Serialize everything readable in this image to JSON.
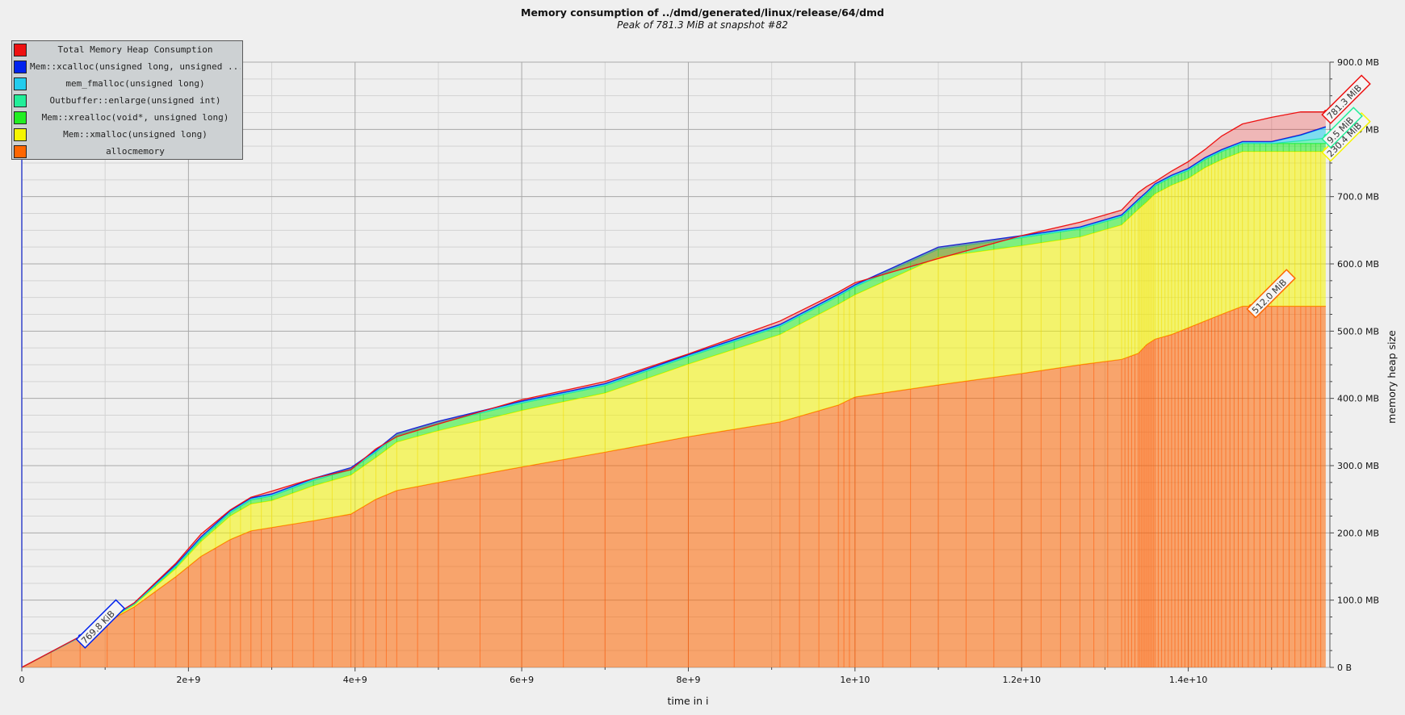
{
  "chart_data": {
    "type": "area",
    "title": "Memory consumption of ../dmd/generated/linux/release/64/dmd",
    "subtitle": "Peak of 781.3 MiB at snapshot #82",
    "xlabel": "time in i",
    "ylabel": "memory heap size",
    "xlim": [
      0,
      15700000000
    ],
    "ylim": [
      0,
      900
    ],
    "x_ticks": [
      {
        "value": 0,
        "label": "0"
      },
      {
        "value": 2000000000,
        "label": "2e+9"
      },
      {
        "value": 4000000000,
        "label": "4e+9"
      },
      {
        "value": 6000000000,
        "label": "6e+9"
      },
      {
        "value": 8000000000,
        "label": "8e+9"
      },
      {
        "value": 10000000000,
        "label": "1e+10"
      },
      {
        "value": 12000000000,
        "label": "1.2e+10"
      },
      {
        "value": 14000000000,
        "label": "1.4e+10"
      }
    ],
    "y_ticks": [
      {
        "value": 0,
        "label": "0 B"
      },
      {
        "value": 100,
        "label": "100.0 MB"
      },
      {
        "value": 200,
        "label": "200.0 MB"
      },
      {
        "value": 300,
        "label": "300.0 MB"
      },
      {
        "value": 400,
        "label": "400.0 MB"
      },
      {
        "value": 500,
        "label": "500.0 MB"
      },
      {
        "value": 600,
        "label": "600.0 MB"
      },
      {
        "value": 700,
        "label": "700.0 MB"
      },
      {
        "value": 800,
        "label": "800.0 MB"
      },
      {
        "value": 900,
        "label": "900.0 MB"
      }
    ],
    "grid": true,
    "stacked": true,
    "legend_position": "top-left",
    "x": [
      0,
      700000000,
      1350000000,
      1850000000,
      2150000000,
      2500000000,
      2750000000,
      3000000000,
      3500000000,
      3950000000,
      4250000000,
      4500000000,
      5000000000,
      6000000000,
      7000000000,
      8000000000,
      9100000000,
      9800000000,
      10000000000,
      11000000000,
      12000000000,
      12700000000,
      13200000000,
      13400000000,
      13500000000,
      13600000000,
      13800000000,
      14000000000,
      14200000000,
      14400000000,
      14650000000,
      15000000000,
      15350000000,
      15650000000
    ],
    "series": [
      {
        "name": "allocmemory",
        "color": "#ff6600",
        "values": [
          0,
          45,
          90,
          135,
          165,
          190,
          203,
          208,
          218,
          228,
          250,
          263,
          275,
          298,
          320,
          343,
          365,
          390,
          402,
          420,
          437,
          450,
          458,
          467,
          480,
          488,
          495,
          505,
          515,
          525,
          537,
          537,
          537,
          537
        ],
        "marker": {
          "x": 14750000000,
          "y": 537,
          "label": "512.0 MiB"
        }
      },
      {
        "name": "Mem::xmalloc(unsigned long)",
        "color": "#f5f500",
        "values": [
          0,
          0,
          3,
          12,
          22,
          35,
          40,
          40,
          52,
          58,
          62,
          72,
          77,
          84,
          88,
          108,
          130,
          150,
          152,
          190,
          190,
          190,
          200,
          214,
          212,
          216,
          222,
          222,
          228,
          230,
          230,
          230,
          230,
          230
        ],
        "marker": {
          "x": 15650000000,
          "y": 770,
          "label": "230.4 MiB"
        }
      },
      {
        "name": "Mem::xrealloc(void*, unsigned long)",
        "color": "#22ee22",
        "values": [
          0,
          0,
          1,
          3,
          4,
          5,
          6,
          7,
          8,
          8,
          8,
          10,
          11,
          11,
          11,
          11,
          12,
          12,
          12,
          12,
          12,
          12,
          12,
          12,
          12,
          12,
          12,
          12,
          12,
          12,
          12,
          12,
          12,
          12
        ]
      },
      {
        "name": "Outbuffer::enlarge(unsigned int)",
        "color": "#22ee99",
        "values": [
          0,
          0,
          0,
          0,
          0,
          0,
          0,
          0,
          0,
          0,
          0,
          0,
          0,
          0,
          0,
          0,
          0,
          0,
          0,
          0,
          0,
          0,
          0,
          0,
          0,
          0,
          0,
          0,
          0,
          0,
          0,
          0,
          4,
          8
        ],
        "marker": {
          "x": 15650000000,
          "y": 790,
          "label": "9.5 MiB"
        }
      },
      {
        "name": "mem_fmalloc(unsigned long)",
        "color": "#22ccee",
        "values": [
          0,
          0,
          1,
          2,
          2,
          2,
          2,
          2,
          2,
          2,
          2,
          2,
          2,
          2,
          2,
          2,
          2,
          2,
          2,
          2,
          2,
          2,
          2,
          2,
          2,
          2,
          2,
          2,
          2,
          2,
          2,
          2,
          8,
          16
        ]
      },
      {
        "name": "Mem::xcalloc(unsigned long, unsigned ...",
        "color": "#0022ee",
        "values": [
          0,
          1,
          1,
          1,
          1,
          1,
          1,
          1,
          1,
          1,
          1,
          1,
          1,
          1,
          1,
          1,
          1,
          1,
          1,
          1,
          1,
          1,
          1,
          1,
          1,
          1,
          1,
          1,
          1,
          1,
          1,
          1,
          1,
          1
        ],
        "marker": {
          "x": 700000000,
          "y": 46,
          "label": "769.8 KiB"
        }
      }
    ],
    "total": {
      "name": "Total Memory Heap Consumption",
      "color": "#ee1111",
      "values": [
        0,
        46,
        96,
        155,
        198,
        234,
        253,
        262,
        281,
        294,
        325,
        343,
        362,
        398,
        425,
        466,
        515,
        558,
        572,
        608,
        642,
        662,
        680,
        706,
        715,
        722,
        738,
        752,
        770,
        790,
        808,
        818,
        826,
        826
      ],
      "marker": {
        "x": 15650000000,
        "y": 826,
        "label": "781.3 MiB"
      }
    },
    "legend": [
      {
        "label": "Total Memory Heap Consumption",
        "color": "#ee1111"
      },
      {
        "label": "Mem::xcalloc(unsigned long, unsigned ...",
        "color": "#0022ee"
      },
      {
        "label": "mem_fmalloc(unsigned long)",
        "color": "#22ccee"
      },
      {
        "label": "Outbuffer::enlarge(unsigned int)",
        "color": "#22ee99"
      },
      {
        "label": "Mem::xrealloc(void*, unsigned long)",
        "color": "#22ee22"
      },
      {
        "label": "Mem::xmalloc(unsigned long)",
        "color": "#f5f500"
      },
      {
        "label": "allocmemory",
        "color": "#ff6600"
      }
    ]
  }
}
